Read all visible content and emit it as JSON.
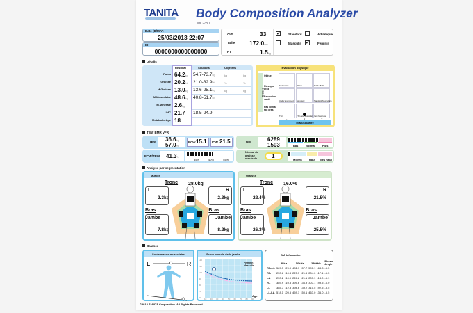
{
  "header": {
    "brand": "TANITA",
    "title": "Body Composition Analyzer",
    "model": "MC-780"
  },
  "info": {
    "date_label": "Date (D/M/Y)",
    "date": "25/03/2013   22:07",
    "id_label": "ID",
    "id": "0000000000000000",
    "age_label": "Age",
    "age": "33",
    "height_label": "Taille",
    "height": "172.0",
    "height_unit": "cm",
    "pt_label": "PT",
    "pt": "1.5",
    "pt_unit": "kg",
    "types": [
      {
        "label": "Standard",
        "checked": true
      },
      {
        "label": "Athlétique",
        "checked": false
      },
      {
        "label": "Masculin",
        "checked": false
      },
      {
        "label": "Féminin",
        "checked": true
      }
    ]
  },
  "details": {
    "section": "Détails",
    "col_result": "Résultat",
    "col_wish": "Souhaits",
    "col_goal": "Objectifs",
    "rows": [
      {
        "label": "Poids",
        "value": "64.2",
        "unit": "kg",
        "range": "54.7-73.7",
        "range_unit": "kg",
        "goal_unit1": "kg",
        "goal_unit2": "kg"
      },
      {
        "label": "Graisse",
        "value": "20.2",
        "unit": "%",
        "range": "21.0-32.9",
        "range_unit": "%",
        "goal_unit1": "%",
        "goal_unit2": "%"
      },
      {
        "label": "M.Graisse",
        "value": "13.0",
        "unit": "kg",
        "range": "13.6-25.1",
        "range_unit": "kg",
        "goal_unit1": "kg",
        "goal_unit2": "kg"
      },
      {
        "label": "M.Musculaire",
        "value": "48.6",
        "unit": "kg",
        "range": "40.8-51.7",
        "range_unit": "kg"
      },
      {
        "label": "M.Minérale",
        "value": "2.6",
        "unit": "kg",
        "range": ""
      },
      {
        "label": "IMC",
        "value": "21.7",
        "unit": "",
        "range": "18.5-24.9"
      },
      {
        "label": "Metabolic Age",
        "value": "18",
        "unit": "",
        "range": ""
      }
    ]
  },
  "evaluation": {
    "title": "Evaluation physique",
    "y_axis": "Graisse",
    "x_axis": "M.Musculaire",
    "row_labels": [
      "Obèse",
      "Plus que gras",
      "Excessive santé",
      "Pas tout à fait gras"
    ],
    "cells": [
      "Sédentaire",
      "Obèse",
      "Solide Built",
      "Under Exercised",
      "Standard",
      "Standard Musculaire",
      "Thin",
      "Thin and Muscular",
      "Very Muscular"
    ],
    "x_ticks": [
      "-",
      "0",
      "+"
    ]
  },
  "water": {
    "section": "TBW BMR VFR",
    "tbw_label": "TBW",
    "tbw_kg": "36.6",
    "tbw_kg_unit": "kg",
    "tbw_pct": "57.0",
    "tbw_pct_unit": "%",
    "ecw_label": "ECW",
    "ecw": "15.1",
    "ecw_unit": "kg",
    "icw_label": "ICW",
    "icw": "21.5",
    "icw_unit": "kg",
    "ratio_label": "ECW/TBW",
    "ratio": "41.3",
    "ratio_unit": "%",
    "ratio_ticks": [
      "35%",
      "40%",
      "45%"
    ],
    "bmr_label": "MB",
    "bmr_kj": "6289",
    "bmr_kj_unit": "kJ",
    "bmr_kcal": "1503",
    "bmr_kcal_unit": "kcal",
    "bmr_scale": [
      "Bas",
      "Normal",
      "Plus"
    ],
    "vf_label": "Niveau de graisse viscérale",
    "vf": "1",
    "vf_scale": [
      "Moyen",
      "Haut",
      "Très haut"
    ]
  },
  "segment": {
    "section": "Analyse par segmentation",
    "muscle": {
      "title": "Muscle",
      "trunk_label": "Tronc",
      "trunk": "28.0kg",
      "left": "L",
      "right": "R",
      "arm_label": "Bras",
      "leg_label": "Jambe",
      "arm_l": "2.3kg",
      "arm_r": "2.3kg",
      "leg_l": "7.8kg",
      "leg_r": "8.2kg"
    },
    "fat": {
      "title": "Graisse",
      "trunk_label": "Tronc",
      "trunk": "16.0%",
      "left": "L",
      "right": "R",
      "arm_label": "Bras",
      "leg_label": "Jambe",
      "arm_l": "22.4%",
      "arm_r": "21.5%",
      "leg_l": "26.3%",
      "leg_r": "25.5%"
    }
  },
  "balance": {
    "section": "Balance",
    "muscle_balance_title": "Solde masse musculaire",
    "left": "L",
    "right": "R",
    "leg_score_title": "Score muscle de la jambe",
    "legend_f": "Féminin",
    "legend_m": "Masculin",
    "x_label": "Age",
    "y_ticks": [
      "120",
      "110",
      "100",
      "90",
      "80",
      "70",
      "60"
    ],
    "x_ticks": [
      "10",
      "20",
      "30",
      "40",
      "50",
      "60",
      "70",
      "80",
      "90"
    ]
  },
  "bia": {
    "title": "BIA Information",
    "cols": [
      "5kHz",
      "50kHz",
      "250kHz",
      "Phase Angle"
    ],
    "rows": [
      [
        "RA-LL",
        "587.3",
        "-29.9",
        "481.1",
        "-57.7",
        "591.1",
        "-68.3",
        "-5.5"
      ],
      [
        "RA",
        "253.6",
        "-10.3",
        "225.3",
        "-21.6",
        "204.0",
        "-17.1",
        "-5.5"
      ],
      [
        "LA",
        "253.2",
        "-10.9",
        "228.8",
        "-21.1",
        "203.9",
        "-18.0",
        "-5.9"
      ],
      [
        "RL",
        "389.9",
        "-10.8",
        "395.6",
        "-36.9",
        "307.1",
        "-99.5",
        "-6.0"
      ],
      [
        "LL",
        "385.7",
        "-12.3",
        "398.6",
        "-39.2",
        "310.5",
        "-92.5",
        "-5.5"
      ],
      [
        "LL-LA",
        "518.1",
        "-20.5",
        "459.1",
        "-50.1",
        "463.0",
        "-35.0",
        "-5.5"
      ]
    ]
  },
  "footer": {
    "copyright": "©2013 TANITA Corporation. All Rights Reserved."
  }
}
